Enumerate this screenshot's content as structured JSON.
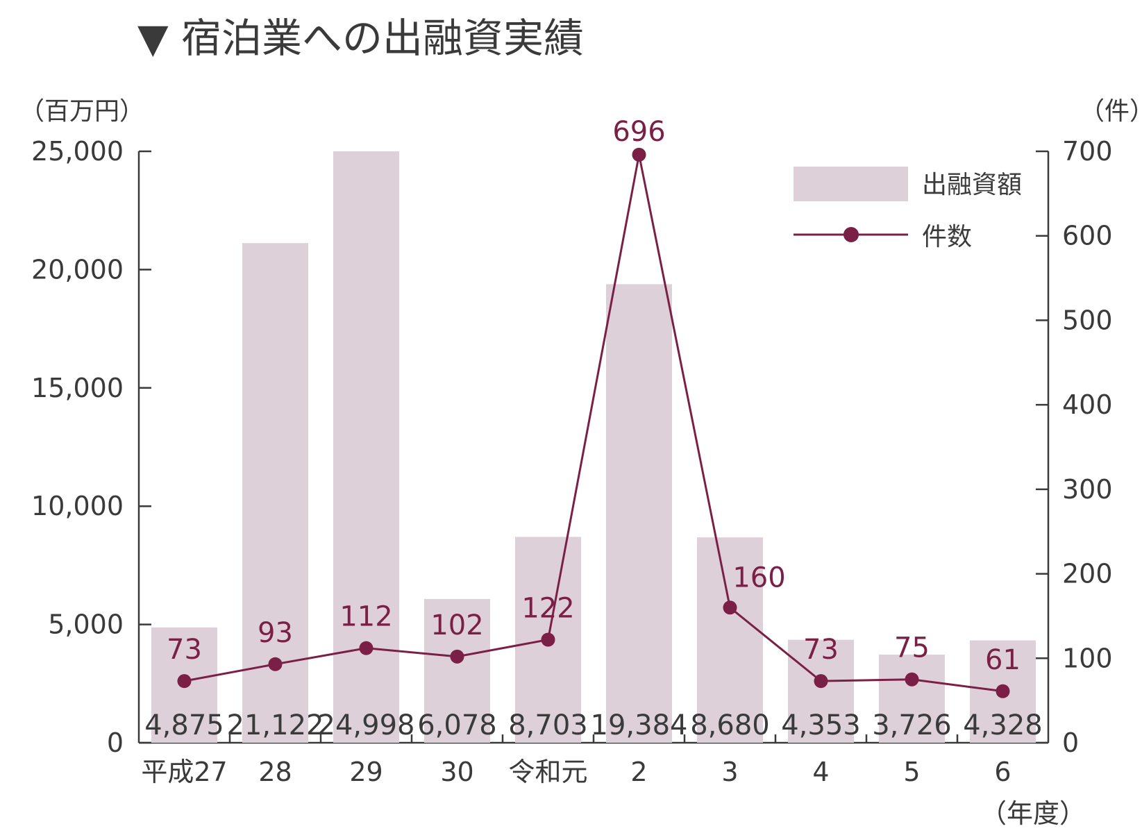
{
  "title": "▼ 宿泊業への出融資実績",
  "chart_data": {
    "type": "bar+line",
    "categories": [
      "平成27",
      "28",
      "29",
      "30",
      "令和元",
      "2",
      "3",
      "4",
      "5",
      "6"
    ],
    "x_unit": "（年度）",
    "series": [
      {
        "name": "出融資額",
        "type": "bar",
        "axis": "left",
        "values": [
          4875,
          21122,
          24998,
          6078,
          8703,
          19384,
          8680,
          4353,
          3726,
          4328
        ],
        "labels": [
          "4,875",
          "21,122",
          "24,998",
          "6,078",
          "8,703",
          "19,384",
          "8,680",
          "4,353",
          "3,726",
          "4,328"
        ]
      },
      {
        "name": "件数",
        "type": "line",
        "axis": "right",
        "values": [
          73,
          93,
          112,
          102,
          122,
          696,
          160,
          73,
          75,
          61
        ],
        "labels": [
          "73",
          "93",
          "112",
          "102",
          "122",
          "696",
          "160",
          "73",
          "75",
          "61"
        ]
      }
    ],
    "y_left": {
      "unit": "（百万円）",
      "ylim": [
        0,
        25000
      ],
      "ticks": [
        "0",
        "5,000",
        "10,000",
        "15,000",
        "20,000",
        "25,000"
      ]
    },
    "y_right": {
      "unit": "（件）",
      "ylim": [
        0,
        700
      ],
      "ticks": [
        "0",
        "100",
        "200",
        "300",
        "400",
        "500",
        "600",
        "700"
      ]
    },
    "legend_position": "top-right",
    "colors": {
      "bar": "#ddd0d9",
      "line": "#7a1f45",
      "axis": "#3a3a3a"
    },
    "grid": false
  }
}
